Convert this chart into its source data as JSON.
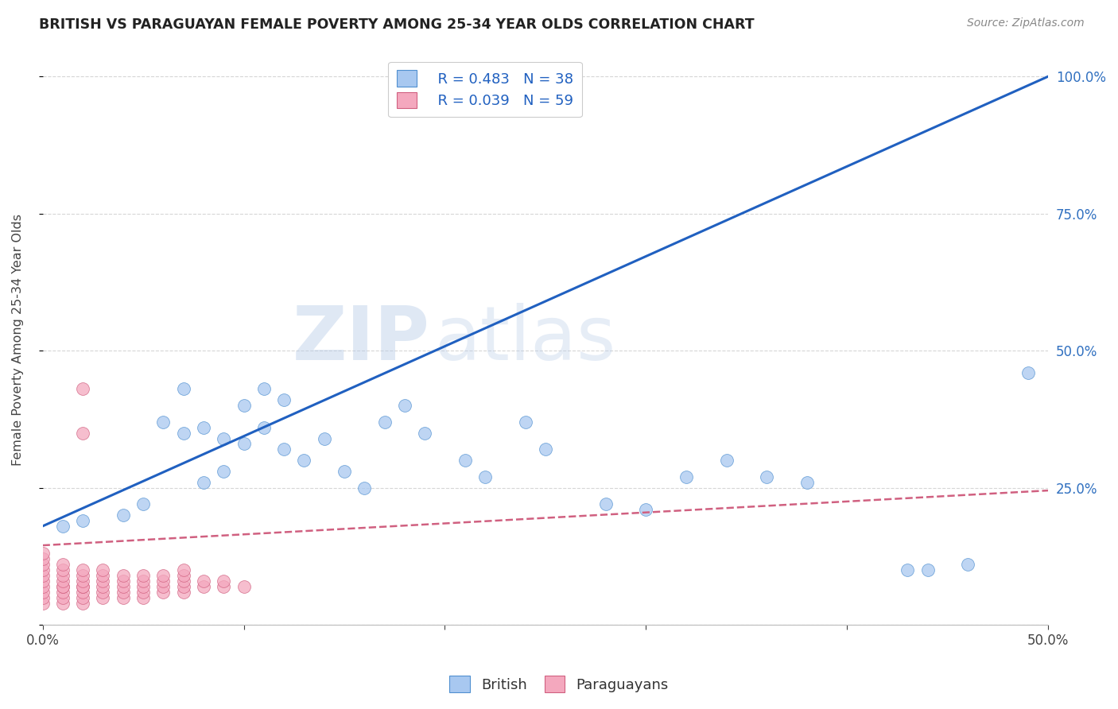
{
  "title": "BRITISH VS PARAGUAYAN FEMALE POVERTY AMONG 25-34 YEAR OLDS CORRELATION CHART",
  "source": "Source: ZipAtlas.com",
  "ylabel": "Female Poverty Among 25-34 Year Olds",
  "xlim": [
    0.0,
    0.5
  ],
  "ylim": [
    0.0,
    1.04
  ],
  "xtick_vals": [
    0.0,
    0.1,
    0.2,
    0.3,
    0.4,
    0.5
  ],
  "xticklabels": [
    "0.0%",
    "",
    "",
    "",
    "",
    "50.0%"
  ],
  "ytick_vals": [
    0.0,
    0.25,
    0.5,
    0.75,
    1.0
  ],
  "yticklabels_right": [
    "",
    "25.0%",
    "50.0%",
    "75.0%",
    "100.0%"
  ],
  "british_color": "#a8c8f0",
  "paraguayan_color": "#f4a8be",
  "british_edge_color": "#5090d0",
  "paraguayan_edge_color": "#d06080",
  "british_line_color": "#2060c0",
  "paraguayan_line_color": "#d06080",
  "legend_R_british": "R = 0.483",
  "legend_N_british": "N = 38",
  "legend_R_paraguayan": "R = 0.039",
  "legend_N_paraguayan": "N = 59",
  "watermark": "ZIPatlas",
  "british_x": [
    0.01,
    0.02,
    0.04,
    0.05,
    0.06,
    0.07,
    0.07,
    0.08,
    0.08,
    0.09,
    0.09,
    0.1,
    0.1,
    0.11,
    0.11,
    0.12,
    0.12,
    0.13,
    0.14,
    0.15,
    0.16,
    0.17,
    0.18,
    0.19,
    0.21,
    0.22,
    0.24,
    0.25,
    0.28,
    0.3,
    0.32,
    0.34,
    0.36,
    0.38,
    0.43,
    0.44,
    0.46,
    0.49
  ],
  "british_y": [
    0.18,
    0.19,
    0.2,
    0.22,
    0.37,
    0.35,
    0.43,
    0.36,
    0.26,
    0.28,
    0.34,
    0.33,
    0.4,
    0.36,
    0.43,
    0.41,
    0.32,
    0.3,
    0.34,
    0.28,
    0.25,
    0.37,
    0.4,
    0.35,
    0.3,
    0.27,
    0.37,
    0.32,
    0.22,
    0.21,
    0.27,
    0.3,
    0.27,
    0.26,
    0.1,
    0.1,
    0.11,
    0.46
  ],
  "paraguayan_x": [
    0.0,
    0.0,
    0.0,
    0.0,
    0.0,
    0.0,
    0.0,
    0.0,
    0.0,
    0.0,
    0.01,
    0.01,
    0.01,
    0.01,
    0.01,
    0.01,
    0.01,
    0.01,
    0.01,
    0.02,
    0.02,
    0.02,
    0.02,
    0.02,
    0.02,
    0.02,
    0.02,
    0.02,
    0.02,
    0.03,
    0.03,
    0.03,
    0.03,
    0.03,
    0.03,
    0.04,
    0.04,
    0.04,
    0.04,
    0.04,
    0.05,
    0.05,
    0.05,
    0.05,
    0.05,
    0.06,
    0.06,
    0.06,
    0.06,
    0.07,
    0.07,
    0.07,
    0.07,
    0.07,
    0.08,
    0.08,
    0.09,
    0.09,
    0.1
  ],
  "paraguayan_y": [
    0.04,
    0.05,
    0.06,
    0.07,
    0.08,
    0.09,
    0.1,
    0.11,
    0.12,
    0.13,
    0.04,
    0.05,
    0.06,
    0.07,
    0.07,
    0.08,
    0.09,
    0.1,
    0.11,
    0.04,
    0.05,
    0.06,
    0.07,
    0.07,
    0.08,
    0.09,
    0.1,
    0.35,
    0.43,
    0.05,
    0.06,
    0.07,
    0.08,
    0.09,
    0.1,
    0.05,
    0.06,
    0.07,
    0.08,
    0.09,
    0.05,
    0.06,
    0.07,
    0.08,
    0.09,
    0.06,
    0.07,
    0.08,
    0.09,
    0.06,
    0.07,
    0.08,
    0.09,
    0.1,
    0.07,
    0.08,
    0.07,
    0.08,
    0.07
  ],
  "british_line_x0": 0.0,
  "british_line_y0": 0.18,
  "british_line_x1": 0.5,
  "british_line_y1": 1.0,
  "paraguayan_line_x0": 0.0,
  "paraguayan_line_y0": 0.145,
  "paraguayan_line_x1": 0.5,
  "paraguayan_line_y1": 0.245,
  "background_color": "#ffffff",
  "grid_color": "#cccccc"
}
